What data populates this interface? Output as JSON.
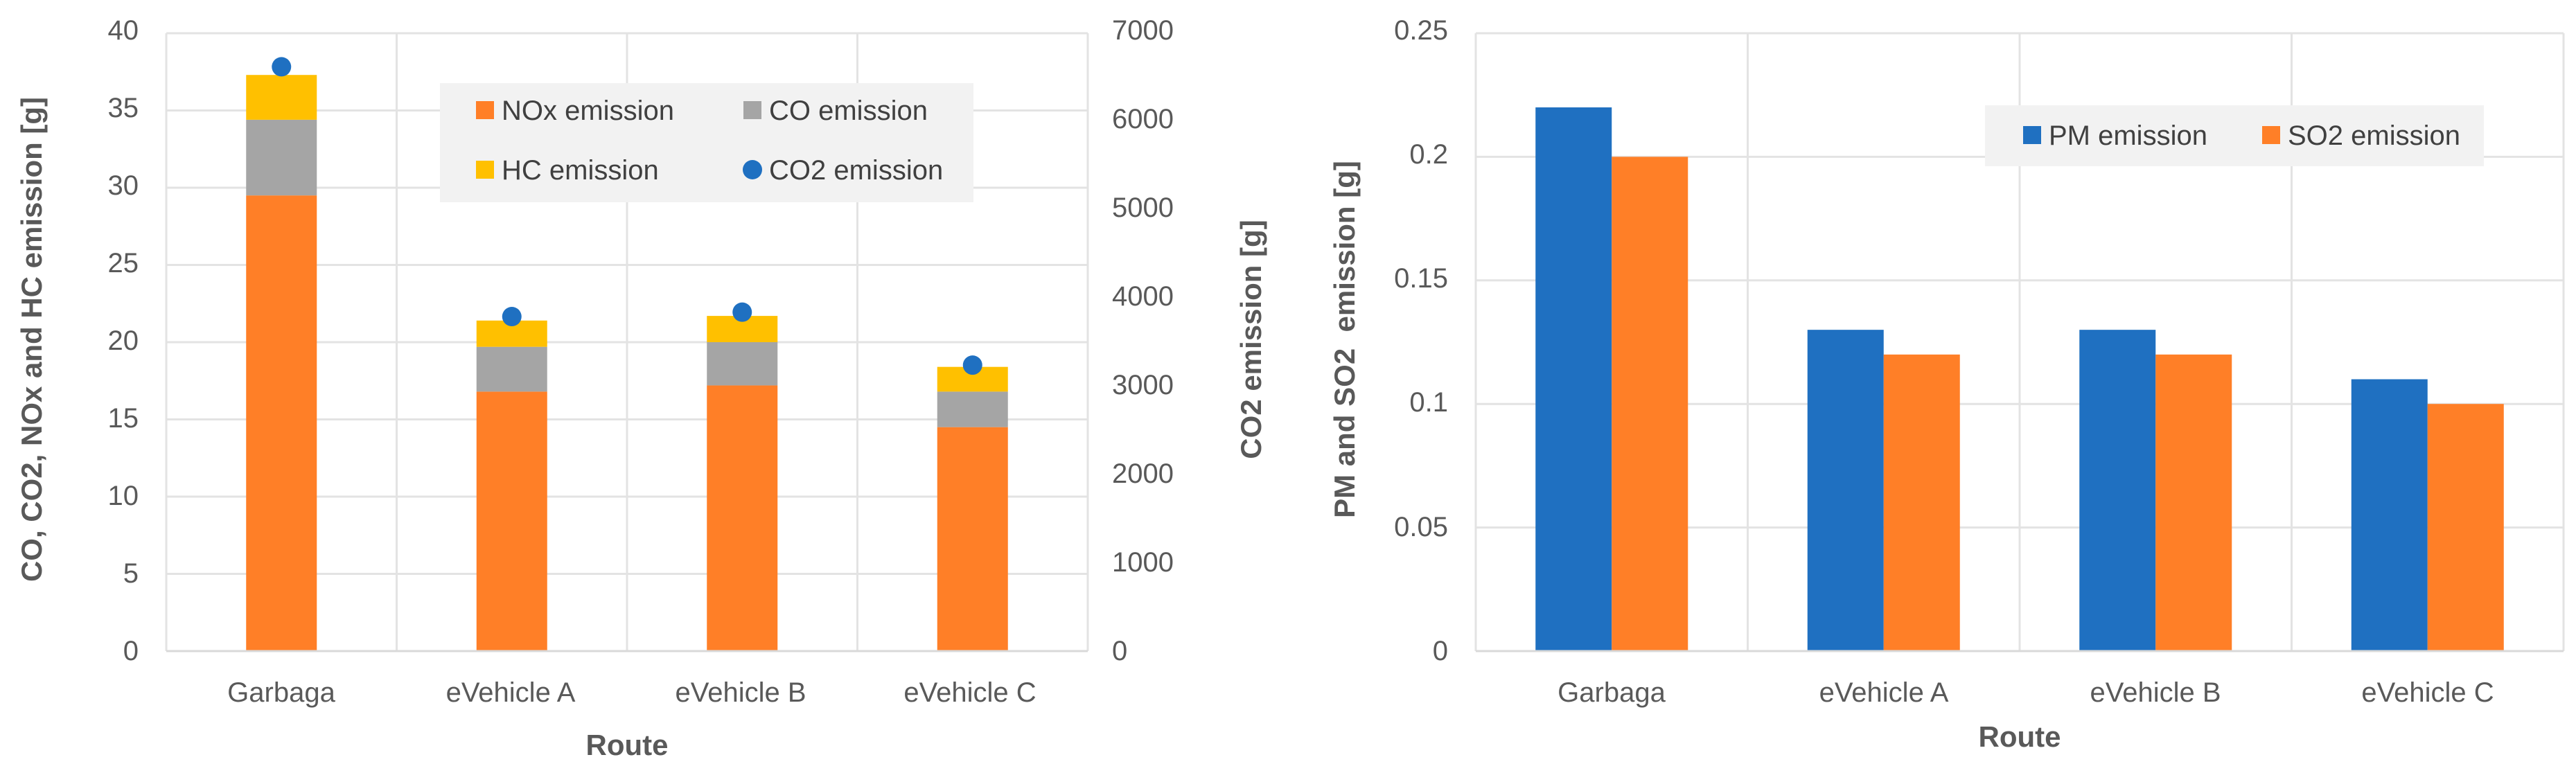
{
  "chart_data": [
    {
      "type": "bar",
      "stacked": true,
      "categories": [
        "Garbaga",
        "eVehicle A",
        "eVehicle B",
        "eVehicle C"
      ],
      "series": [
        {
          "name": "NOx emission",
          "color": "#FF7F27",
          "values": [
            29.5,
            16.8,
            17.2,
            14.5
          ]
        },
        {
          "name": "CO emission",
          "color": "#A5A5A5",
          "values": [
            4.9,
            2.9,
            2.8,
            2.3
          ]
        },
        {
          "name": "HC emission",
          "color": "#FFC000",
          "values": [
            2.9,
            1.7,
            1.7,
            1.6
          ]
        }
      ],
      "secondary_series": {
        "name": "CO2 emission",
        "type": "scatter",
        "color": "#1F70C1",
        "values": [
          6620,
          3790,
          3840,
          3240
        ]
      },
      "title": "",
      "xlabel": "Route",
      "ylabel": "CO, CO2, NOx and HC emission [g]",
      "y2label": "CO2 emission [g]",
      "ylim": [
        0,
        40
      ],
      "yticks": [
        "0",
        "5",
        "10",
        "15",
        "20",
        "25",
        "30",
        "35",
        "40"
      ],
      "y2lim": [
        0,
        7000
      ],
      "y2ticks": [
        "0",
        "1000",
        "2000",
        "3000",
        "4000",
        "5000",
        "6000",
        "7000"
      ],
      "legend": [
        "NOx emission",
        "CO emission",
        "HC emission",
        "CO2 emission"
      ]
    },
    {
      "type": "bar",
      "stacked": false,
      "categories": [
        "Garbaga",
        "eVehicle A",
        "eVehicle B",
        "eVehicle C"
      ],
      "series": [
        {
          "name": "PM emission",
          "color": "#1F70C1",
          "values": [
            0.22,
            0.13,
            0.13,
            0.11
          ]
        },
        {
          "name": "SO2 emission",
          "color": "#FF7F27",
          "values": [
            0.2,
            0.12,
            0.12,
            0.1
          ]
        }
      ],
      "title": "",
      "xlabel": "Route",
      "ylabel": "PM and SO2  emission [g]",
      "ylim": [
        0,
        0.25
      ],
      "yticks": [
        "0",
        "0.05",
        "0.1",
        "0.15",
        "0.2",
        "0.25"
      ],
      "legend": [
        "PM emission",
        "SO2 emission"
      ]
    }
  ]
}
